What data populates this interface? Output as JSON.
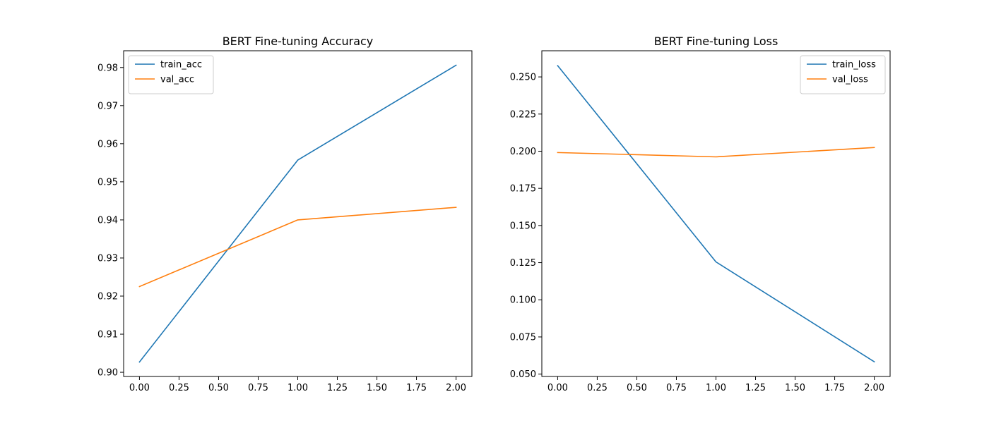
{
  "chart_data": [
    {
      "type": "line",
      "title": "BERT Fine-tuning Accuracy",
      "xlabel": "",
      "ylabel": "",
      "xlim": [
        -0.1,
        2.1
      ],
      "ylim": [
        0.8989,
        0.9844
      ],
      "xticks": [
        "0.00",
        "0.25",
        "0.50",
        "0.75",
        "1.00",
        "1.25",
        "1.50",
        "1.75",
        "2.00"
      ],
      "xtick_values": [
        0,
        0.25,
        0.5,
        0.75,
        1,
        1.25,
        1.5,
        1.75,
        2
      ],
      "yticks": [
        "0.90",
        "0.91",
        "0.92",
        "0.93",
        "0.94",
        "0.95",
        "0.96",
        "0.97",
        "0.98"
      ],
      "ytick_values": [
        0.9,
        0.91,
        0.92,
        0.93,
        0.94,
        0.95,
        0.96,
        0.97,
        0.98
      ],
      "grid": false,
      "legend_position": "upper-left",
      "x": [
        0,
        1,
        2
      ],
      "series": [
        {
          "name": "train_acc",
          "color": "#1f77b4",
          "values": [
            0.9027,
            0.9557,
            0.9806
          ]
        },
        {
          "name": "val_acc",
          "color": "#ff7f0e",
          "values": [
            0.9225,
            0.94,
            0.9433
          ]
        }
      ]
    },
    {
      "type": "line",
      "title": "BERT Fine-tuning Loss",
      "xlabel": "",
      "ylabel": "",
      "xlim": [
        -0.1,
        2.1
      ],
      "ylim": [
        0.0484,
        0.2676
      ],
      "xticks": [
        "0.00",
        "0.25",
        "0.50",
        "0.75",
        "1.00",
        "1.25",
        "1.50",
        "1.75",
        "2.00"
      ],
      "xtick_values": [
        0,
        0.25,
        0.5,
        0.75,
        1,
        1.25,
        1.5,
        1.75,
        2
      ],
      "yticks": [
        "0.050",
        "0.075",
        "0.100",
        "0.125",
        "0.150",
        "0.175",
        "0.200",
        "0.225",
        "0.250"
      ],
      "ytick_values": [
        0.05,
        0.075,
        0.1,
        0.125,
        0.15,
        0.175,
        0.2,
        0.225,
        0.25
      ],
      "grid": false,
      "legend_position": "upper-right",
      "x": [
        0,
        1,
        2
      ],
      "series": [
        {
          "name": "train_loss",
          "color": "#1f77b4",
          "values": [
            0.2576,
            0.1255,
            0.0583
          ]
        },
        {
          "name": "val_loss",
          "color": "#ff7f0e",
          "values": [
            0.1991,
            0.1962,
            0.2025
          ]
        }
      ]
    }
  ]
}
